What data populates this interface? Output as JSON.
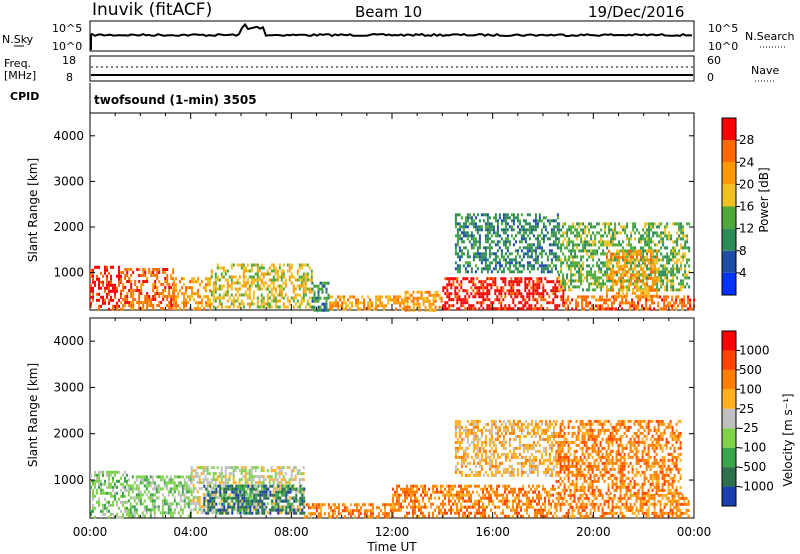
{
  "header": {
    "station": "Inuvik (fitACF)",
    "beam": "Beam 10",
    "date": "19/Dec/2016"
  },
  "top_panels": {
    "nsky_label": "N.Sky",
    "nsky_ticks": [
      "10^5",
      "10^0"
    ],
    "nsearch_label": "N.Search",
    "nsearch_ticks": [
      "10^5",
      "10^0"
    ],
    "freq_label_line1": "Freq.",
    "freq_label_line2": "[MHz]",
    "freq_ticks": [
      "18",
      "8"
    ],
    "nave_label": "Nave",
    "nave_ticks": [
      "60",
      "0"
    ],
    "cpid_label": "CPID",
    "cpid_text": "twofsound (1-min) 3505"
  },
  "colorbars": {
    "power": {
      "label": "Power [dB]",
      "ticks": [
        "28",
        "24",
        "20",
        "16",
        "12",
        "8",
        "4"
      ],
      "colors": [
        "#0033ff",
        "#1f4ea8",
        "#2e8b57",
        "#4daa3a",
        "#f0c020",
        "#ff9900",
        "#ff6a00",
        "#ff0000"
      ]
    },
    "velocity": {
      "label": "Velocity [m s⁻¹]",
      "ticks": [
        "1000",
        "500",
        "100",
        "25",
        "-25",
        "-100",
        "-500",
        "-1000"
      ],
      "colors": [
        "#1c3fb0",
        "#2e6f4e",
        "#3aa54a",
        "#7fd34a",
        "#c0c0c0",
        "#ffb020",
        "#ff8000",
        "#ff4500",
        "#ff0000"
      ]
    }
  },
  "chart_data": [
    {
      "type": "heatmap",
      "title": "Power",
      "ylabel": "Slant Range [km]",
      "xlabel": "Time UT",
      "xlim": [
        0,
        24
      ],
      "ylim": [
        180,
        4500
      ],
      "yticks": [
        "4000",
        "3000",
        "2000",
        "1000"
      ],
      "xticks": [
        "00:00",
        "04:00",
        "08:00",
        "12:00",
        "16:00",
        "20:00",
        "00:00"
      ],
      "colorbar": "Power [dB]",
      "regions": [
        {
          "t": [
            0.0,
            1.2
          ],
          "r": [
            200,
            1150
          ],
          "level": 7
        },
        {
          "t": [
            1.2,
            3.3
          ],
          "r": [
            200,
            1100
          ],
          "level": 6
        },
        {
          "t": [
            3.3,
            4.8
          ],
          "r": [
            200,
            900
          ],
          "level": 5
        },
        {
          "t": [
            4.8,
            8.8
          ],
          "r": [
            250,
            1200
          ],
          "level": 4
        },
        {
          "t": [
            8.8,
            9.5
          ],
          "r": [
            200,
            800
          ],
          "level": 2
        },
        {
          "t": [
            9.5,
            12.5
          ],
          "r": [
            200,
            500
          ],
          "level": 5
        },
        {
          "t": [
            12.5,
            14.0
          ],
          "r": [
            200,
            600
          ],
          "level": 5
        },
        {
          "t": [
            14.0,
            18.8
          ],
          "r": [
            200,
            900
          ],
          "level": 7
        },
        {
          "t": [
            14.5,
            18.6
          ],
          "r": [
            1000,
            2300
          ],
          "level": 2
        },
        {
          "t": [
            18.8,
            24.0
          ],
          "r": [
            200,
            500
          ],
          "level": 6
        },
        {
          "t": [
            18.6,
            23.8
          ],
          "r": [
            600,
            2100
          ],
          "level": 3
        },
        {
          "t": [
            20.5,
            22.5
          ],
          "r": [
            500,
            1500
          ],
          "level": 5
        }
      ]
    },
    {
      "type": "heatmap",
      "title": "Velocity",
      "ylabel": "Slant Range [km]",
      "xlabel": "Time UT",
      "xlim": [
        0,
        24
      ],
      "ylim": [
        180,
        4500
      ],
      "yticks": [
        "4000",
        "3000",
        "2000",
        "1000"
      ],
      "xticks": [
        "00:00",
        "04:00",
        "08:00",
        "12:00",
        "16:00",
        "20:00",
        "00:00"
      ],
      "colorbar": "Velocity [m s⁻¹]",
      "regions": [
        {
          "t": [
            0.0,
            1.5
          ],
          "r": [
            200,
            1200
          ],
          "level": 3
        },
        {
          "t": [
            1.5,
            4.0
          ],
          "r": [
            200,
            1100
          ],
          "level": 3
        },
        {
          "t": [
            4.0,
            8.5
          ],
          "r": [
            300,
            1300
          ],
          "level": 4
        },
        {
          "t": [
            4.5,
            8.5
          ],
          "r": [
            300,
            900
          ],
          "level": 1
        },
        {
          "t": [
            8.5,
            12.0
          ],
          "r": [
            200,
            500
          ],
          "level": 6
        },
        {
          "t": [
            12.0,
            18.5
          ],
          "r": [
            200,
            900
          ],
          "level": 6
        },
        {
          "t": [
            14.5,
            18.5
          ],
          "r": [
            1100,
            2300
          ],
          "level": 5
        },
        {
          "t": [
            18.5,
            23.8
          ],
          "r": [
            200,
            700
          ],
          "level": 6
        },
        {
          "t": [
            18.5,
            23.5
          ],
          "r": [
            700,
            2300
          ],
          "level": 6
        }
      ]
    }
  ],
  "xaxis": {
    "label": "Time UT",
    "ticks": [
      "00:00",
      "04:00",
      "08:00",
      "12:00",
      "16:00",
      "20:00",
      "00:00"
    ]
  }
}
